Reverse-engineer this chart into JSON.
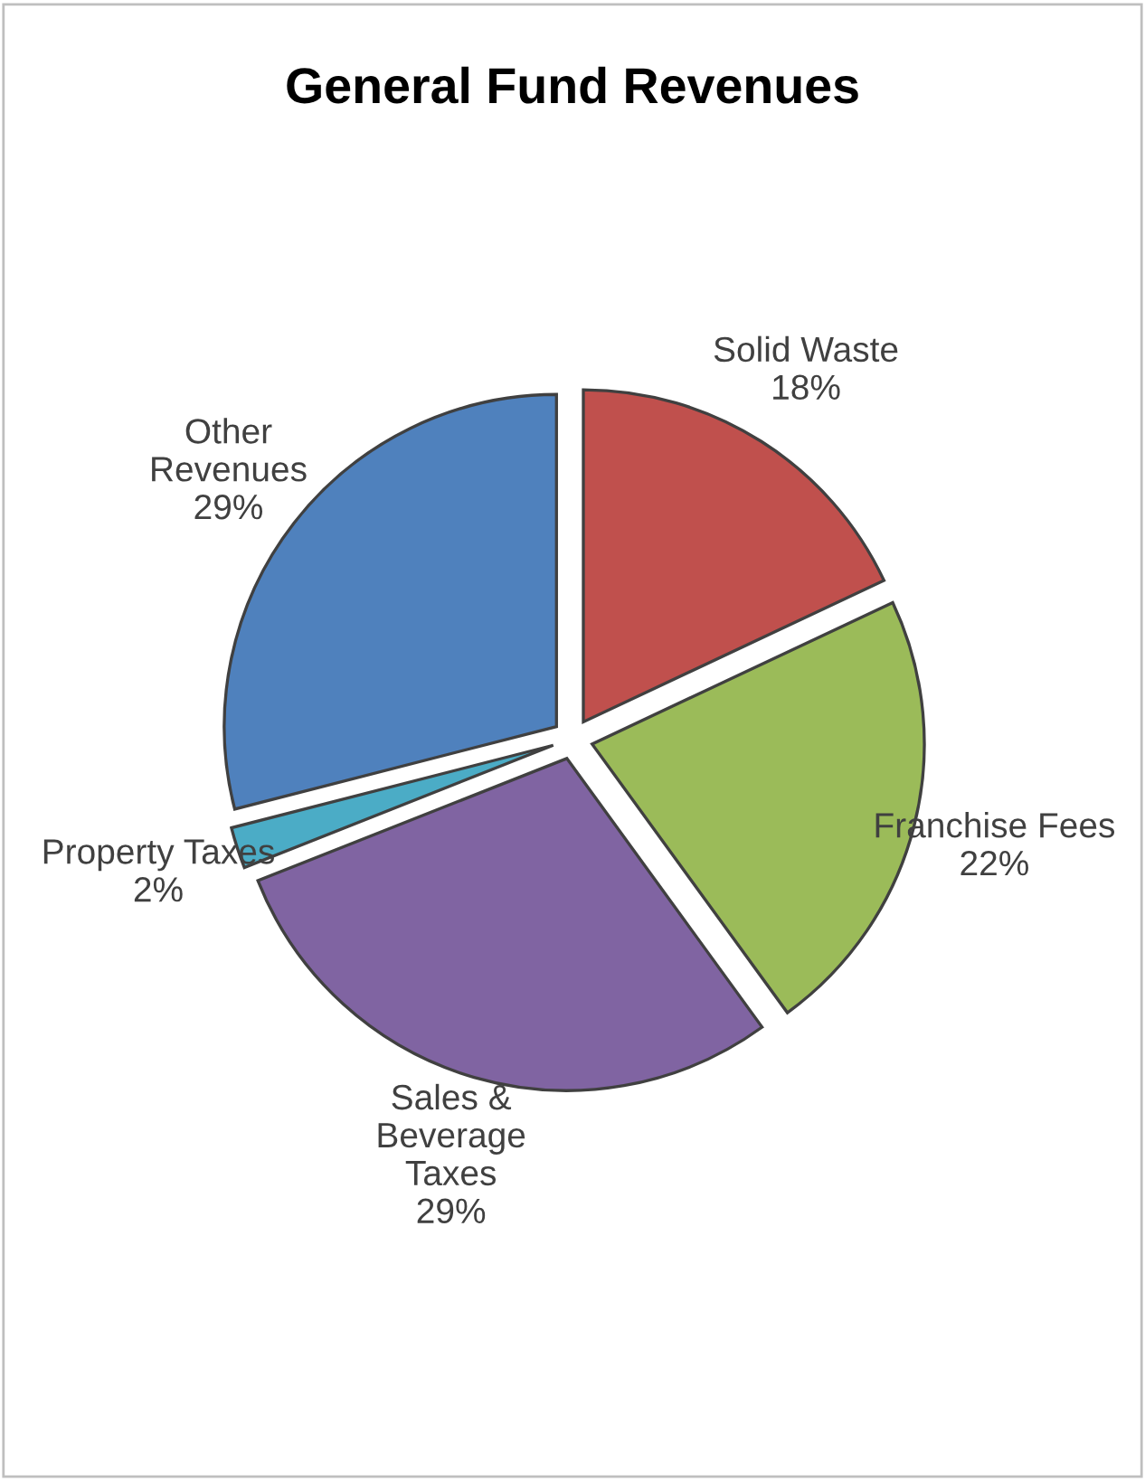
{
  "chart_data": {
    "type": "pie",
    "title": "General Fund Revenues",
    "categories": [
      "Solid Waste",
      "Franchise Fees",
      "Sales &\nBeverage\nTaxes",
      "Property Taxes",
      "Other\nRevenues"
    ],
    "values": [
      18,
      22,
      29,
      2,
      29
    ],
    "value_labels": [
      "18%",
      "22%",
      "29%",
      "2%",
      "29%"
    ],
    "colors": [
      "#c0504d",
      "#9bbb59",
      "#8064a2",
      "#4bacc6",
      "#4f81bd"
    ],
    "legend": false
  }
}
